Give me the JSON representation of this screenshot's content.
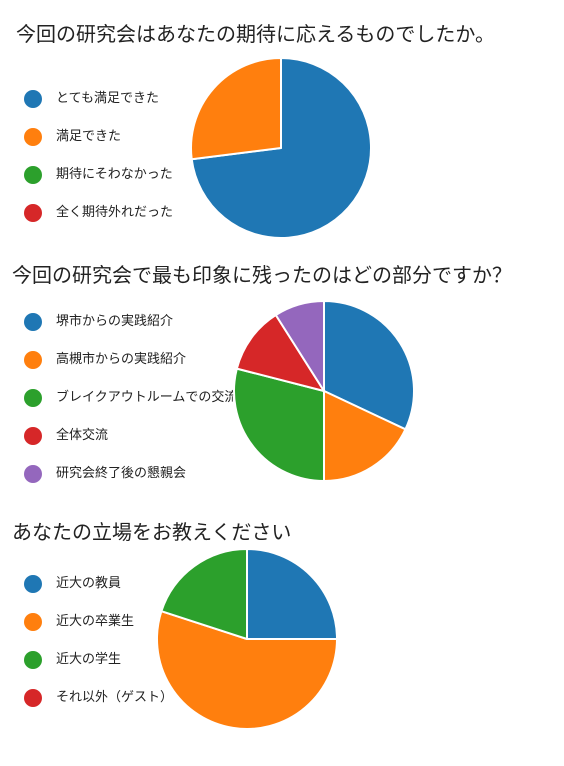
{
  "colors": {
    "blue": "#1f77b4",
    "orange": "#ff7f0e",
    "green": "#2ca02c",
    "red": "#d62728",
    "purple": "#9467bd"
  },
  "chart_data": [
    {
      "type": "pie",
      "title": "今回の研究会はあなたの期待に応えるものでしたか。",
      "legend_position": "left",
      "categories": [
        "とても満足できた",
        "満足できた",
        "期待にそわなかった",
        "全く期待外れだった"
      ],
      "values": [
        73,
        27,
        0,
        0
      ],
      "colors": [
        "#1f77b4",
        "#ff7f0e",
        "#2ca02c",
        "#d62728"
      ]
    },
    {
      "type": "pie",
      "title": "今回の研究会で最も印象に残ったのはどの部分ですか？",
      "legend_position": "left",
      "categories": [
        "堺市からの実践紹介",
        "高槻市からの実践紹介",
        "ブレイクアウトルームでの交流",
        "全体交流",
        "研究会終了後の懇親会"
      ],
      "values": [
        32,
        18,
        29,
        12,
        9
      ],
      "colors": [
        "#1f77b4",
        "#ff7f0e",
        "#2ca02c",
        "#d62728",
        "#9467bd"
      ]
    },
    {
      "type": "pie",
      "title": "あなたの立場をお教えください",
      "legend_position": "left",
      "categories": [
        "近大の教員",
        "近大の卒業生",
        "近大の学生",
        "それ以外（ゲスト）"
      ],
      "values": [
        25,
        55,
        20,
        0
      ],
      "colors": [
        "#1f77b4",
        "#ff7f0e",
        "#2ca02c",
        "#d62728"
      ]
    }
  ]
}
